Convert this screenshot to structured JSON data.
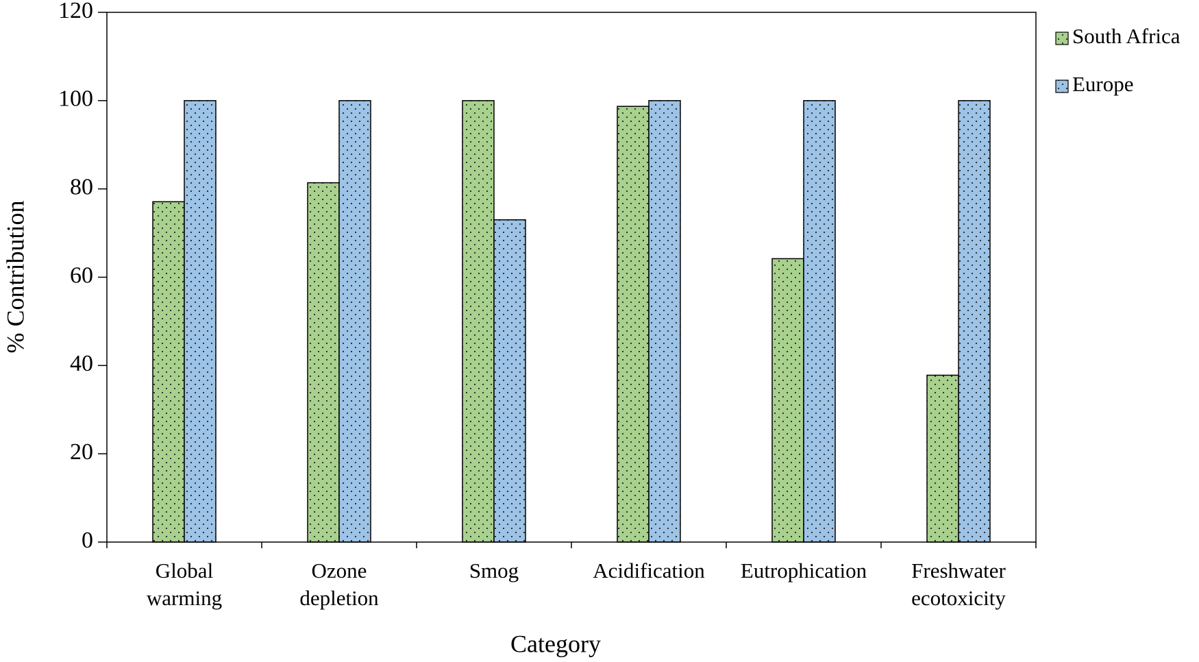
{
  "chart_data": {
    "type": "bar",
    "categories": [
      "Global warming",
      "Ozone depletion",
      "Smog",
      "Acidification",
      "Eutrophication",
      "Freshwater ecotoxicity"
    ],
    "series": [
      {
        "name": "South Africa",
        "color": "#a9d18e",
        "values": [
          77.1,
          81.4,
          100,
          98.7,
          64.2,
          37.8
        ]
      },
      {
        "name": "Europe",
        "color": "#9dc3e6",
        "values": [
          100,
          100,
          73,
          100,
          100,
          100
        ]
      }
    ],
    "x_label": "Category",
    "y_label": "% Contribution",
    "ylim": [
      0,
      120
    ],
    "yticks": [
      0,
      20,
      40,
      60,
      80,
      100,
      120
    ],
    "legend": "right"
  }
}
